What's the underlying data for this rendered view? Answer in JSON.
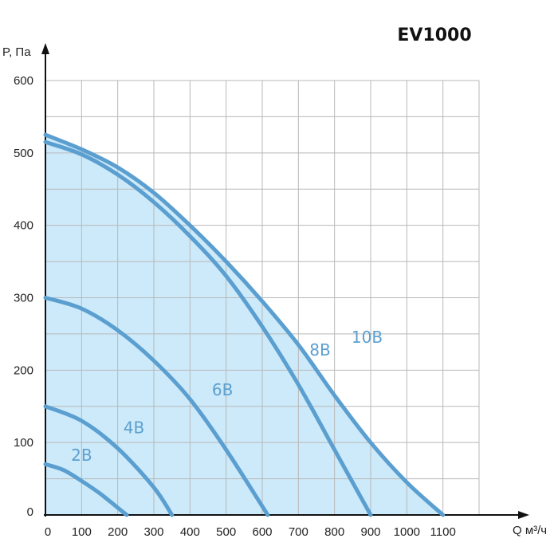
{
  "chart_data": {
    "type": "line",
    "title": "EV1000",
    "xlabel": "Q м³/ч",
    "ylabel": "P, Па",
    "xlim": [
      0,
      1200
    ],
    "ylim": [
      0,
      600
    ],
    "x_ticks": [
      "0",
      "100",
      "200",
      "300",
      "400",
      "500",
      "600",
      "700",
      "800",
      "900",
      "1000",
      "1100"
    ],
    "y_ticks": [
      "0",
      "100",
      "200",
      "300",
      "400",
      "500",
      "600"
    ],
    "grid": true,
    "fill_color": "#cdeafa",
    "curve_color": "#5b9fd0",
    "series": [
      {
        "name": "2В",
        "x": [
          0,
          50,
          100,
          150,
          200,
          225
        ],
        "y": [
          70,
          62,
          47,
          30,
          10,
          0
        ]
      },
      {
        "name": "4В",
        "x": [
          0,
          100,
          200,
          300,
          350
        ],
        "y": [
          150,
          130,
          92,
          38,
          0
        ]
      },
      {
        "name": "6В",
        "x": [
          0,
          100,
          200,
          300,
          400,
          500,
          600,
          615
        ],
        "y": [
          300,
          285,
          255,
          213,
          160,
          90,
          12,
          0
        ]
      },
      {
        "name": "8В",
        "x": [
          0,
          100,
          200,
          300,
          400,
          500,
          600,
          700,
          800,
          900
        ],
        "y": [
          515,
          498,
          470,
          432,
          385,
          330,
          260,
          180,
          90,
          0
        ]
      },
      {
        "name": "10В",
        "x": [
          0,
          100,
          200,
          300,
          400,
          500,
          600,
          700,
          800,
          900,
          1000,
          1100
        ],
        "y": [
          525,
          505,
          480,
          445,
          400,
          350,
          295,
          235,
          165,
          100,
          45,
          0
        ]
      }
    ]
  }
}
